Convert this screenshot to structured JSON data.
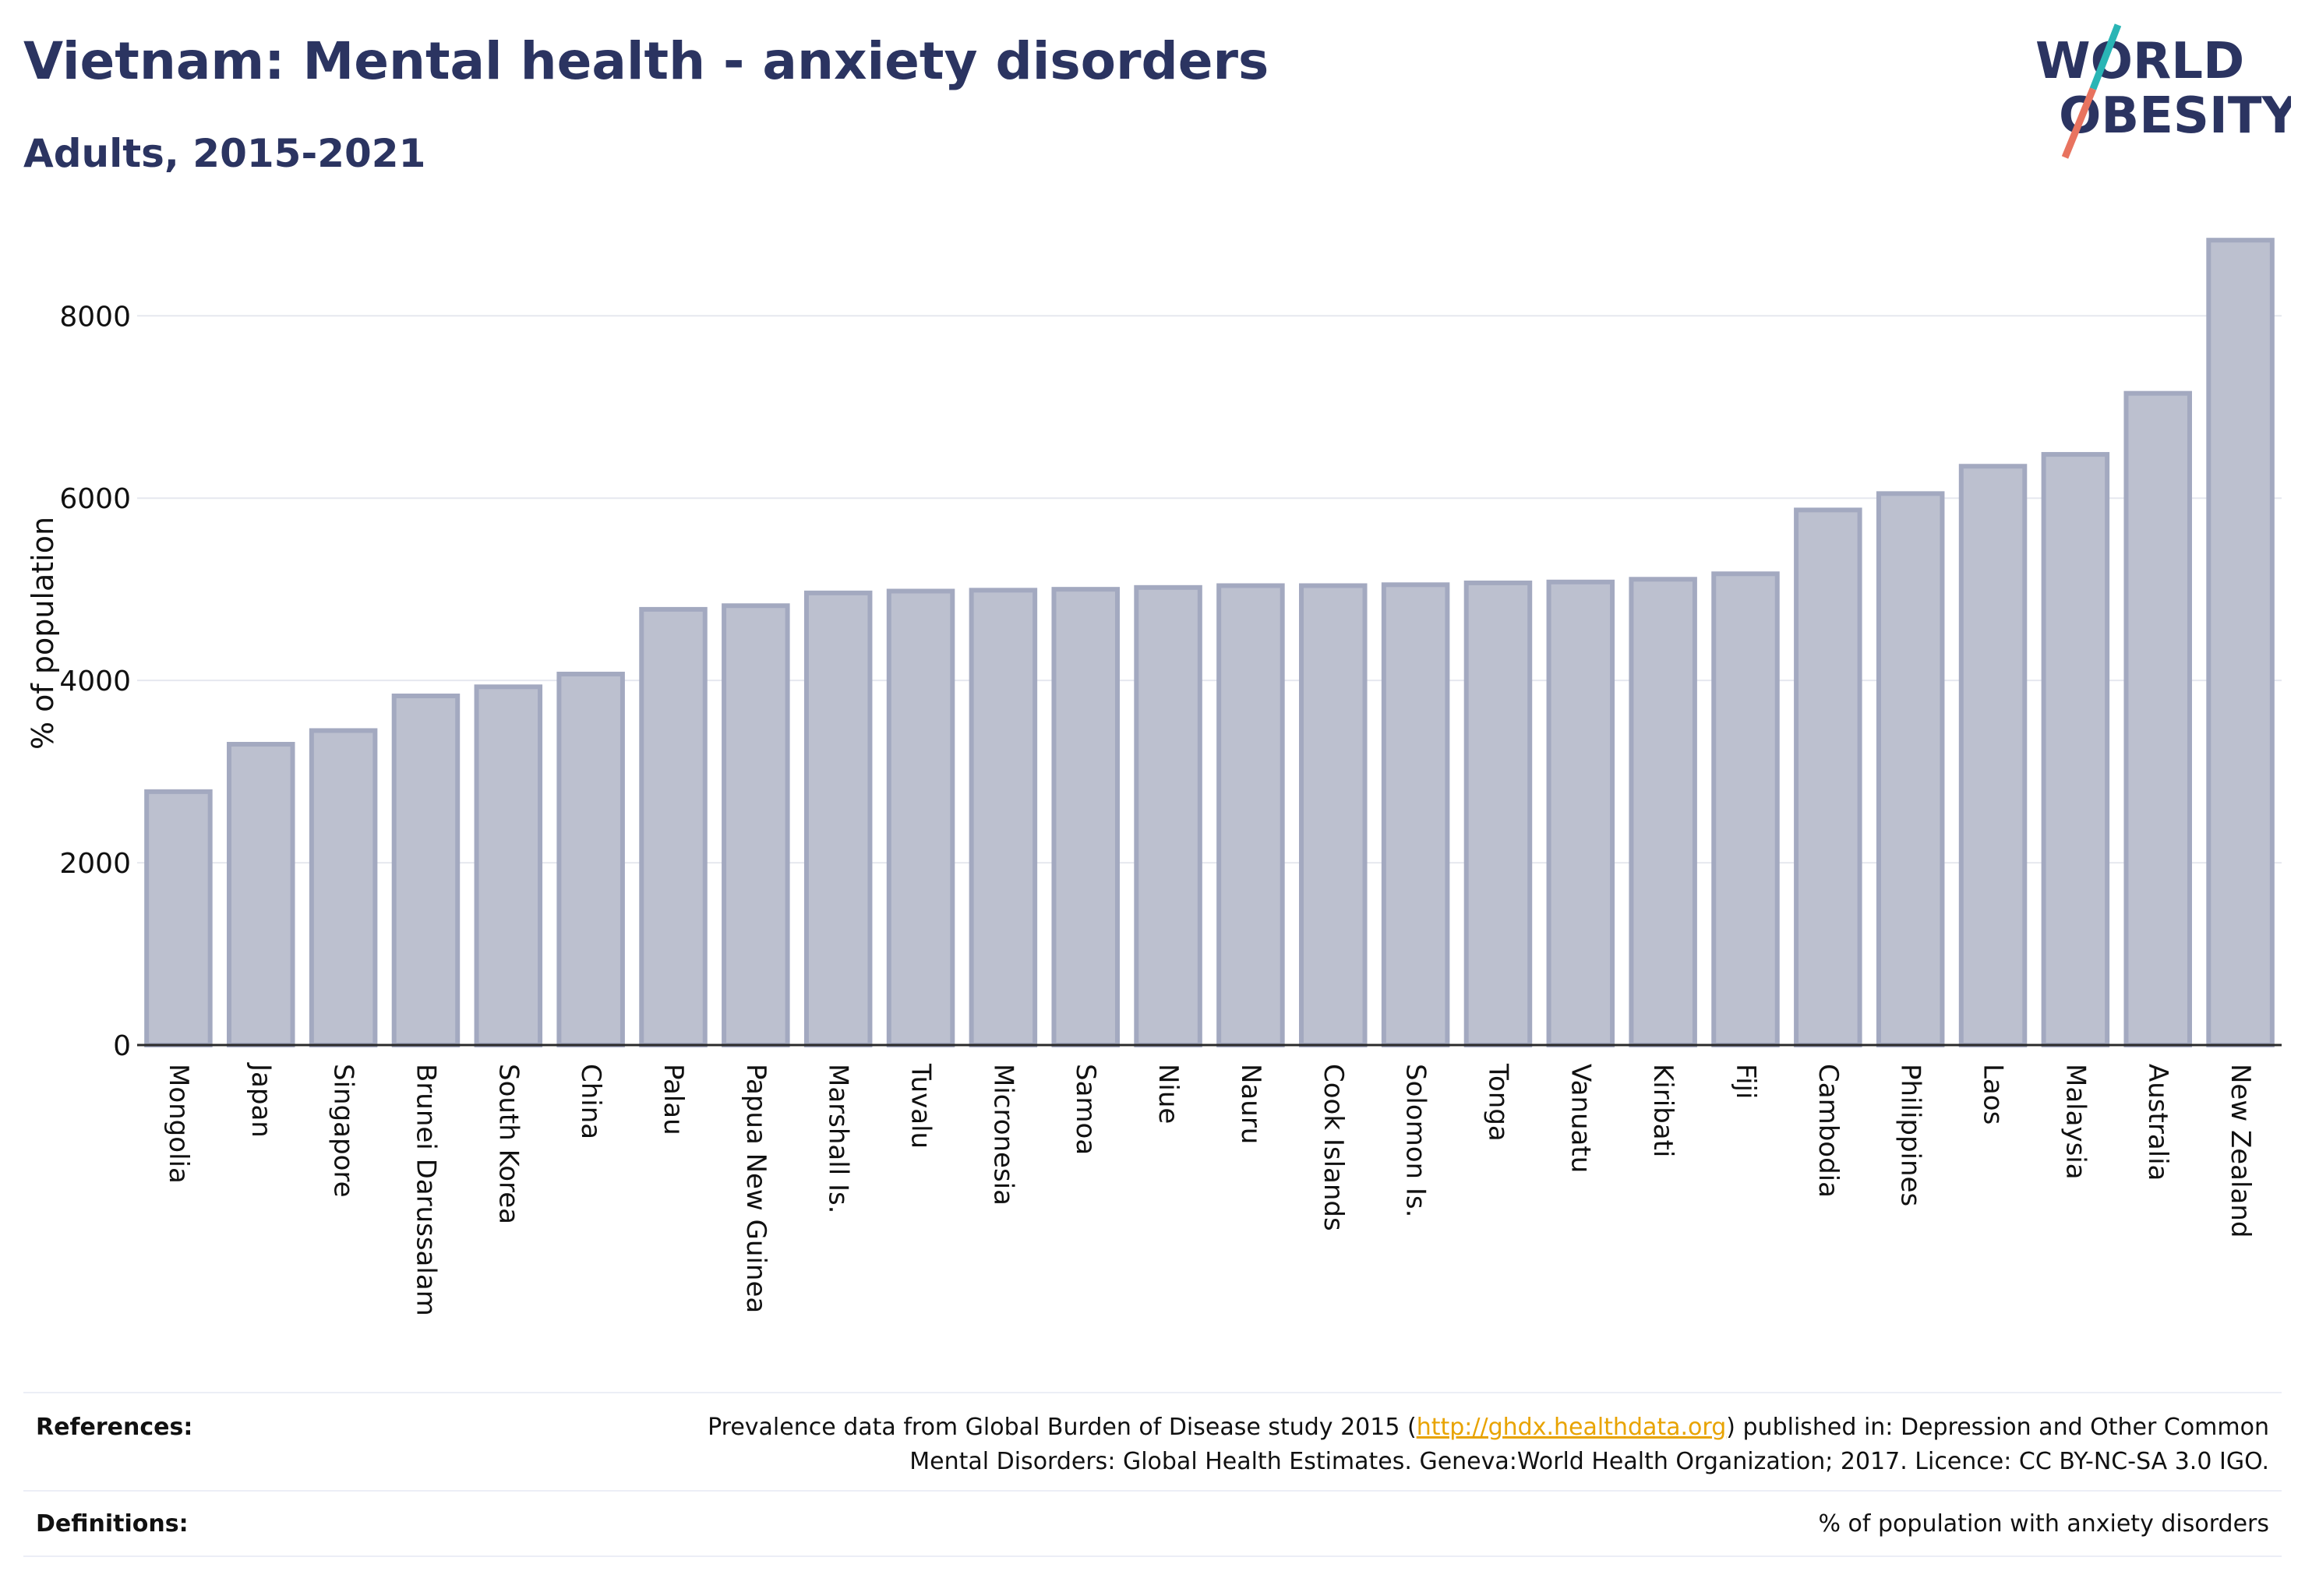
{
  "header": {
    "title": "Vietnam: Mental health - anxiety disorders",
    "subtitle": "Adults, 2015-2021"
  },
  "logo": {
    "line1": "WORLD",
    "line2": "OBESITY"
  },
  "chart_data": {
    "type": "bar",
    "title": "Vietnam: Mental health - anxiety disorders",
    "subtitle": "Adults, 2015-2021",
    "xlabel": "",
    "ylabel": "% of population",
    "ylim": [
      0,
      8900
    ],
    "yticks": [
      0,
      2000,
      4000,
      6000,
      8000
    ],
    "grid": true,
    "bar_color": "#bcc0cf",
    "bar_edge_color": "#a3a9c0",
    "categories": [
      "Mongolia",
      "Japan",
      "Singapore",
      "Brunei Darussalam",
      "South Korea",
      "China",
      "Palau",
      "Papua New Guinea",
      "Marshall Is.",
      "Tuvalu",
      "Micronesia",
      "Samoa",
      "Niue",
      "Nauru",
      "Cook Islands",
      "Solomon Is.",
      "Tonga",
      "Vanuatu",
      "Kiribati",
      "Fiji",
      "Cambodia",
      "Philippines",
      "Laos",
      "Malaysia",
      "Australia",
      "New Zealand"
    ],
    "values": [
      2780,
      3300,
      3450,
      3830,
      3930,
      4070,
      4780,
      4820,
      4960,
      4980,
      4990,
      5000,
      5020,
      5040,
      5040,
      5050,
      5070,
      5080,
      5110,
      5170,
      5870,
      6050,
      6350,
      6480,
      7150,
      8830
    ]
  },
  "references": {
    "label": "References:",
    "line1_before": "Prevalence data from Global Burden of Disease study 2015 (",
    "link": "http://ghdx.healthdata.org",
    "line1_after": ") published in: Depression and Other Common",
    "line2": "Mental Disorders: Global Health Estimates. Geneva:World Health Organization; 2017. Licence: CC BY-NC-SA 3.0 IGO."
  },
  "definitions": {
    "label": "Definitions:",
    "text": "% of population with anxiety disorders"
  },
  "colors": {
    "title": "#2b3461",
    "logo_teal": "#2ab5b5",
    "logo_coral": "#e8735f",
    "link": "#e8a300"
  }
}
